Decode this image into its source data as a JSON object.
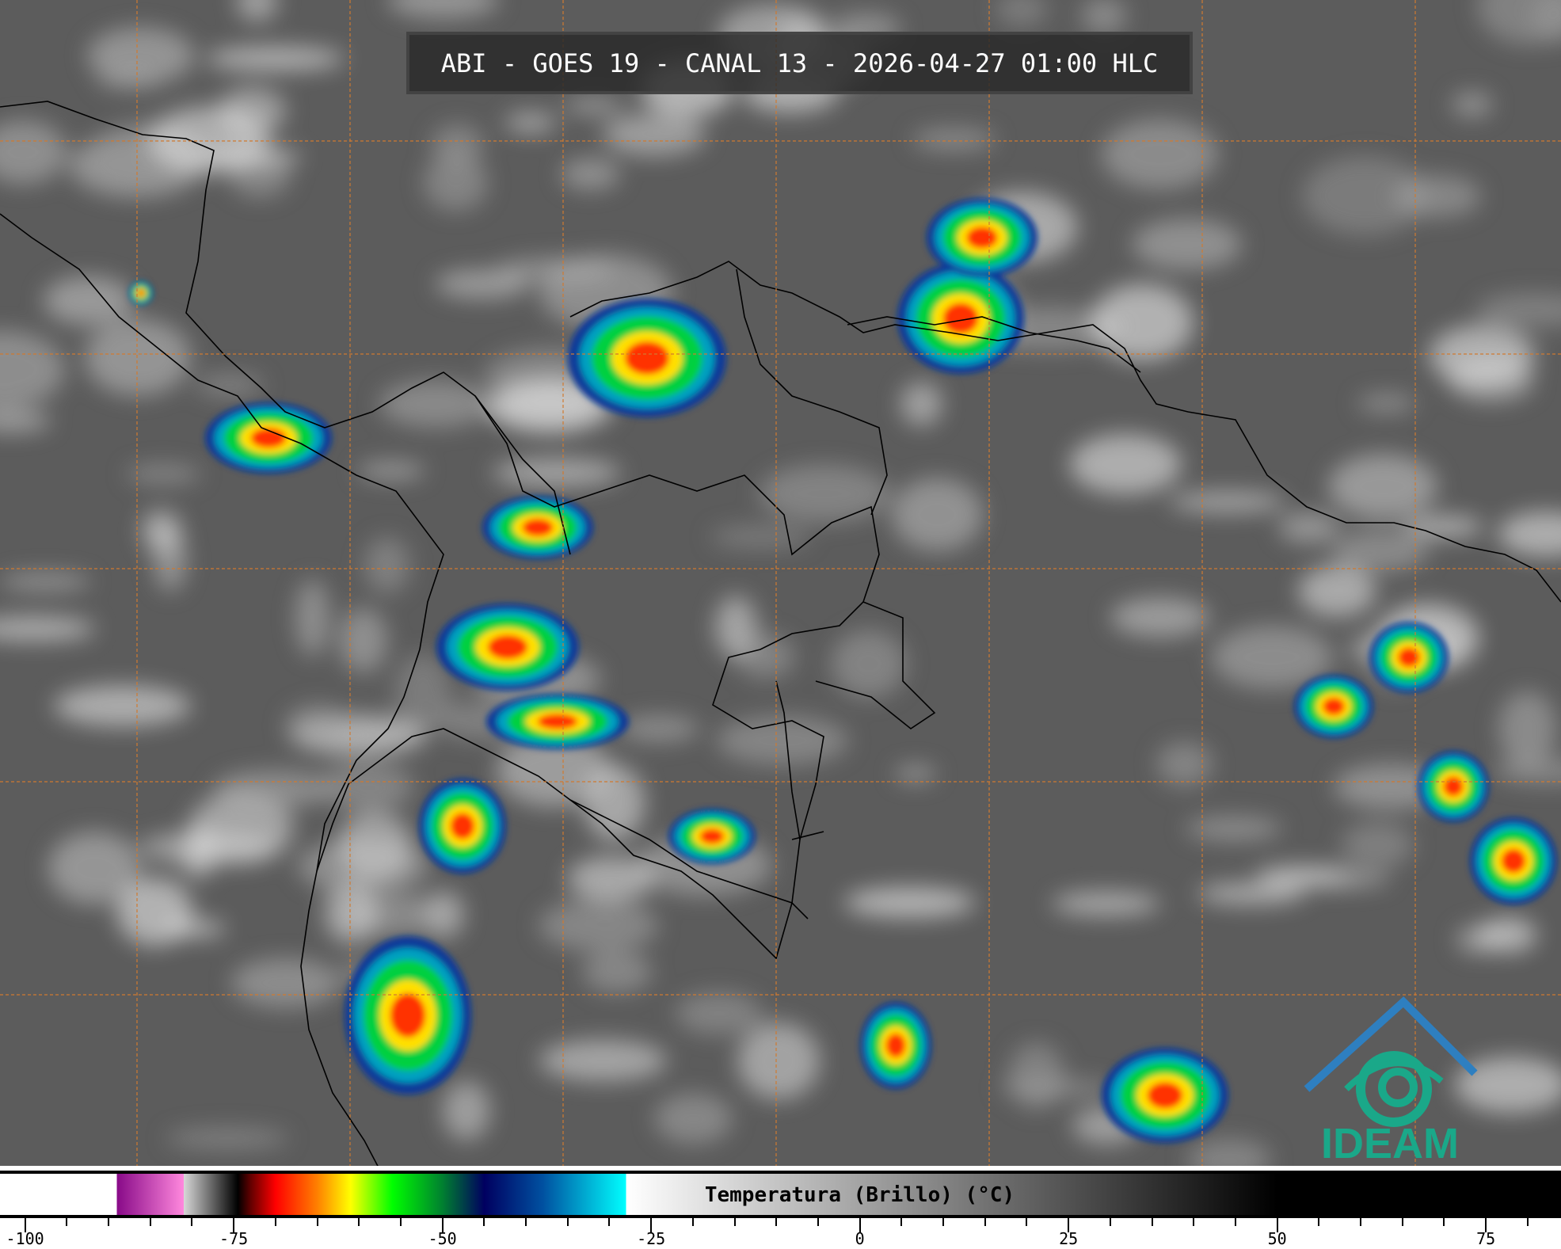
{
  "title": "ABI - GOES 19 - CANAL 13 - 2026-04-27 01:00 HLC",
  "colorbar": {
    "label": "Temperatura (Brillo) (°C)",
    "range": [
      -103,
      84
    ],
    "tick_labels": [
      "-100",
      "-75",
      "-50",
      "-25",
      "0",
      "25",
      "50",
      "75"
    ],
    "major_ticks": [
      -100,
      -75,
      -50,
      -25,
      0,
      25,
      50,
      75
    ],
    "minor_step": 5,
    "stops": [
      [
        -103,
        "#ffffff"
      ],
      [
        -89,
        "#ffffff"
      ],
      [
        -89,
        "#880a88"
      ],
      [
        -81,
        "#ff88dd"
      ],
      [
        -81,
        "#d8d8d8"
      ],
      [
        -76,
        "#303030"
      ],
      [
        -74.5,
        "#000000"
      ],
      [
        -73,
        "#600000"
      ],
      [
        -70,
        "#ff0000"
      ],
      [
        -65,
        "#ff8000"
      ],
      [
        -61,
        "#ffff00"
      ],
      [
        -56,
        "#00ff00"
      ],
      [
        -50,
        "#008030"
      ],
      [
        -45,
        "#000060"
      ],
      [
        -38,
        "#0050a0"
      ],
      [
        -28,
        "#00ffff"
      ],
      [
        -28,
        "#ffffff"
      ],
      [
        50,
        "#000000"
      ],
      [
        84,
        "#000000"
      ]
    ]
  },
  "colors": {
    "grid": "#d07a30",
    "background": "#5c5c5c",
    "logo": "#1aa889",
    "logo_roof": "#2e7fc0"
  },
  "logo": {
    "text": "IDEAM"
  }
}
